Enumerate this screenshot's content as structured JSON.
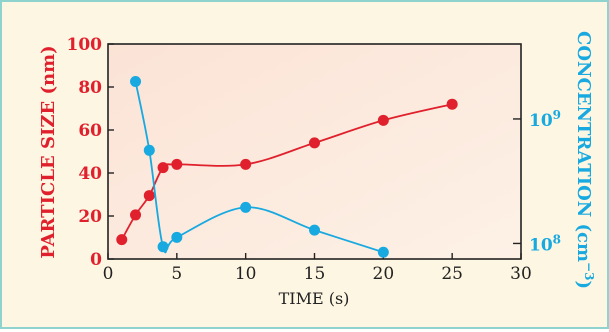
{
  "chart_data": {
    "type": "line",
    "xlabel": "TIME (s)",
    "xlim": [
      0,
      30
    ],
    "xticks": [
      "0",
      "5",
      "10",
      "15",
      "20",
      "25",
      "30"
    ],
    "left_axis": {
      "label": "PARTICLE SIZE (nm)",
      "ylim": [
        0,
        100
      ],
      "ticks": [
        "0",
        "20",
        "40",
        "60",
        "80",
        "100"
      ],
      "color": "#e0202c"
    },
    "right_axis": {
      "label": "CONCENTRATION (cm",
      "label_exponent": "−3",
      "label_suffix": ")",
      "scale": "log",
      "ylim": [
        75000000,
        4000000000
      ],
      "ticks": [
        {
          "base": "10",
          "exp": "8",
          "value": 100000000
        },
        {
          "base": "10",
          "exp": "9",
          "value": 1000000000
        }
      ],
      "color": "#17a9e0"
    },
    "series": [
      {
        "axis": "left",
        "color": "#e0202c",
        "x": [
          1,
          2,
          3,
          4,
          5,
          10,
          15,
          20,
          25
        ],
        "y": [
          9,
          20.5,
          29.5,
          42.5,
          44,
          44,
          54,
          64.5,
          72
        ]
      },
      {
        "axis": "right",
        "color": "#17a9e0",
        "x": [
          2,
          3,
          4,
          5,
          10,
          15,
          20
        ],
        "y": [
          2000000000,
          560000000,
          94000000,
          112000000,
          195000000,
          128000000,
          85000000
        ]
      }
    ],
    "grid": false,
    "legend": "none",
    "plot_background": "#fde5d7",
    "frame_background": "#fdf6e2",
    "frame_border": "#8fd3cf"
  }
}
